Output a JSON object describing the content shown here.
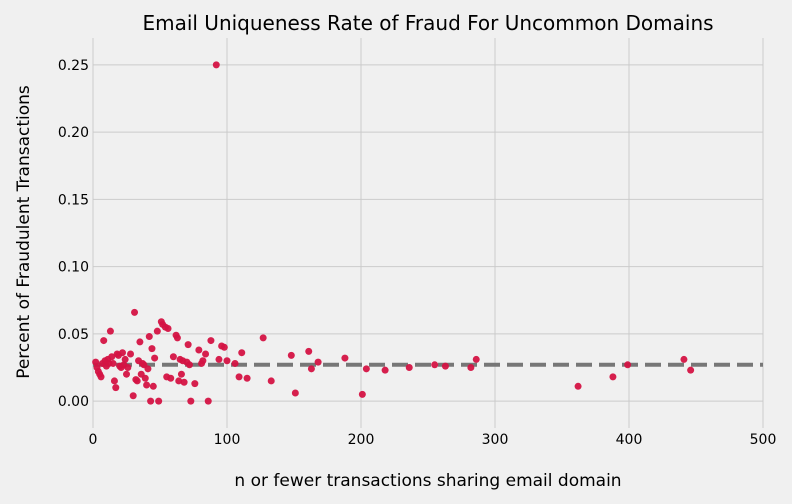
{
  "chart_data": {
    "type": "scatter",
    "title": "Email Uniqueness Rate of Fraud For Uncommon Domains",
    "xlabel": "n or fewer transactions sharing email domain",
    "ylabel": "Percent of Fraudulent Transactions",
    "xlim": [
      0,
      500
    ],
    "ylim": [
      -0.02,
      0.27
    ],
    "xticks": [
      0,
      100,
      200,
      300,
      400,
      500
    ],
    "yticks": [
      0.0,
      0.05,
      0.1,
      0.15,
      0.2,
      0.25
    ],
    "xtick_labels": [
      "0",
      "100",
      "200",
      "300",
      "400",
      "500"
    ],
    "ytick_labels": [
      "0.00",
      "0.05",
      "0.10",
      "0.15",
      "0.20",
      "0.25"
    ],
    "grid": true,
    "point_color": "#d41343",
    "reference_line": {
      "y": 0.027,
      "style": "dashed",
      "color": "#777777"
    },
    "points": [
      {
        "x": 2,
        "y": 0.029
      },
      {
        "x": 3,
        "y": 0.025
      },
      {
        "x": 4,
        "y": 0.022
      },
      {
        "x": 5,
        "y": 0.02
      },
      {
        "x": 6,
        "y": 0.018
      },
      {
        "x": 7,
        "y": 0.028
      },
      {
        "x": 8,
        "y": 0.045
      },
      {
        "x": 9,
        "y": 0.03
      },
      {
        "x": 10,
        "y": 0.026
      },
      {
        "x": 11,
        "y": 0.031
      },
      {
        "x": 12,
        "y": 0.028
      },
      {
        "x": 13,
        "y": 0.052
      },
      {
        "x": 14,
        "y": 0.033
      },
      {
        "x": 15,
        "y": 0.028
      },
      {
        "x": 16,
        "y": 0.015
      },
      {
        "x": 17,
        "y": 0.01
      },
      {
        "x": 18,
        "y": 0.035
      },
      {
        "x": 19,
        "y": 0.034
      },
      {
        "x": 20,
        "y": 0.026
      },
      {
        "x": 21,
        "y": 0.025
      },
      {
        "x": 22,
        "y": 0.036
      },
      {
        "x": 23,
        "y": 0.027
      },
      {
        "x": 24,
        "y": 0.031
      },
      {
        "x": 25,
        "y": 0.02
      },
      {
        "x": 26,
        "y": 0.025
      },
      {
        "x": 28,
        "y": 0.035
      },
      {
        "x": 30,
        "y": 0.004
      },
      {
        "x": 31,
        "y": 0.066
      },
      {
        "x": 32,
        "y": 0.016
      },
      {
        "x": 33,
        "y": 0.015
      },
      {
        "x": 34,
        "y": 0.03
      },
      {
        "x": 35,
        "y": 0.044
      },
      {
        "x": 36,
        "y": 0.02
      },
      {
        "x": 37,
        "y": 0.028
      },
      {
        "x": 38,
        "y": 0.027
      },
      {
        "x": 39,
        "y": 0.017
      },
      {
        "x": 40,
        "y": 0.012
      },
      {
        "x": 41,
        "y": 0.024
      },
      {
        "x": 42,
        "y": 0.048
      },
      {
        "x": 43,
        "y": 0.0
      },
      {
        "x": 44,
        "y": 0.039
      },
      {
        "x": 45,
        "y": 0.011
      },
      {
        "x": 46,
        "y": 0.032
      },
      {
        "x": 48,
        "y": 0.052
      },
      {
        "x": 49,
        "y": 0.0
      },
      {
        "x": 51,
        "y": 0.059
      },
      {
        "x": 52,
        "y": 0.057
      },
      {
        "x": 54,
        "y": 0.055
      },
      {
        "x": 55,
        "y": 0.018
      },
      {
        "x": 56,
        "y": 0.054
      },
      {
        "x": 58,
        "y": 0.017
      },
      {
        "x": 60,
        "y": 0.033
      },
      {
        "x": 62,
        "y": 0.049
      },
      {
        "x": 63,
        "y": 0.047
      },
      {
        "x": 64,
        "y": 0.015
      },
      {
        "x": 65,
        "y": 0.031
      },
      {
        "x": 66,
        "y": 0.02
      },
      {
        "x": 67,
        "y": 0.03
      },
      {
        "x": 68,
        "y": 0.014
      },
      {
        "x": 70,
        "y": 0.029
      },
      {
        "x": 71,
        "y": 0.042
      },
      {
        "x": 72,
        "y": 0.027
      },
      {
        "x": 73,
        "y": 0.0
      },
      {
        "x": 76,
        "y": 0.013
      },
      {
        "x": 79,
        "y": 0.038
      },
      {
        "x": 81,
        "y": 0.028
      },
      {
        "x": 82,
        "y": 0.03
      },
      {
        "x": 84,
        "y": 0.035
      },
      {
        "x": 86,
        "y": 0.0
      },
      {
        "x": 88,
        "y": 0.045
      },
      {
        "x": 92,
        "y": 0.25
      },
      {
        "x": 94,
        "y": 0.031
      },
      {
        "x": 96,
        "y": 0.041
      },
      {
        "x": 98,
        "y": 0.04
      },
      {
        "x": 100,
        "y": 0.03
      },
      {
        "x": 106,
        "y": 0.028
      },
      {
        "x": 109,
        "y": 0.018
      },
      {
        "x": 111,
        "y": 0.036
      },
      {
        "x": 115,
        "y": 0.017
      },
      {
        "x": 127,
        "y": 0.047
      },
      {
        "x": 133,
        "y": 0.015
      },
      {
        "x": 148,
        "y": 0.034
      },
      {
        "x": 151,
        "y": 0.006
      },
      {
        "x": 161,
        "y": 0.037
      },
      {
        "x": 163,
        "y": 0.024
      },
      {
        "x": 168,
        "y": 0.029
      },
      {
        "x": 188,
        "y": 0.032
      },
      {
        "x": 201,
        "y": 0.005
      },
      {
        "x": 204,
        "y": 0.024
      },
      {
        "x": 218,
        "y": 0.023
      },
      {
        "x": 236,
        "y": 0.025
      },
      {
        "x": 255,
        "y": 0.027
      },
      {
        "x": 263,
        "y": 0.026
      },
      {
        "x": 282,
        "y": 0.025
      },
      {
        "x": 286,
        "y": 0.031
      },
      {
        "x": 362,
        "y": 0.011
      },
      {
        "x": 388,
        "y": 0.018
      },
      {
        "x": 399,
        "y": 0.027
      },
      {
        "x": 441,
        "y": 0.031
      },
      {
        "x": 446,
        "y": 0.023
      }
    ]
  }
}
